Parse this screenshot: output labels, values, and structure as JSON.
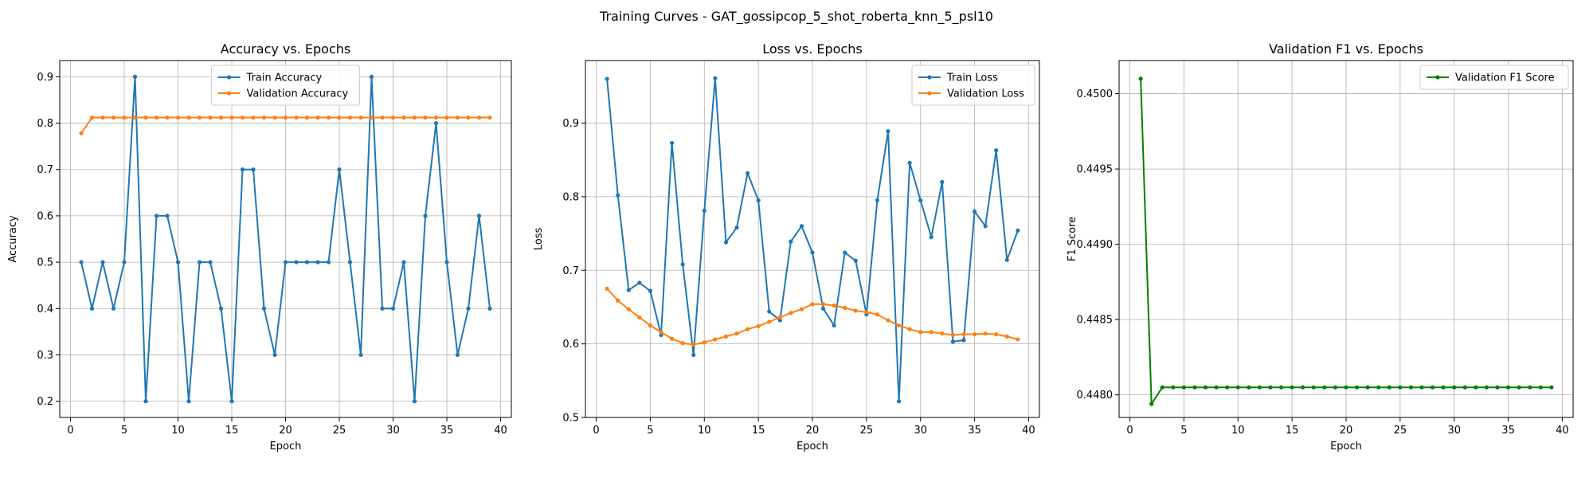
{
  "figure": {
    "suptitle": "Training Curves - GAT_gossipcop_5_shot_roberta_knn_5_psl10"
  },
  "chart_data": [
    {
      "type": "line",
      "title": "Accuracy vs. Epochs",
      "xlabel": "Epoch",
      "ylabel": "Accuracy",
      "xlim": [
        -1,
        41
      ],
      "ylim": [
        0.165,
        0.935
      ],
      "xticks": [
        0,
        5,
        10,
        15,
        20,
        25,
        30,
        35,
        40
      ],
      "yticks": [
        0.2,
        0.3,
        0.4,
        0.5,
        0.6,
        0.7,
        0.8,
        0.9
      ],
      "ytick_decimals": 1,
      "grid": true,
      "legend": "top-center",
      "x": [
        1,
        2,
        3,
        4,
        5,
        6,
        7,
        8,
        9,
        10,
        11,
        12,
        13,
        14,
        15,
        16,
        17,
        18,
        19,
        20,
        21,
        22,
        23,
        24,
        25,
        26,
        27,
        28,
        29,
        30,
        31,
        32,
        33,
        34,
        35,
        36,
        37,
        38,
        39
      ],
      "series": [
        {
          "name": "Train Accuracy",
          "color": "#1f77b4",
          "values": [
            0.5,
            0.4,
            0.5,
            0.4,
            0.5,
            0.9,
            0.2,
            0.6,
            0.6,
            0.5,
            0.2,
            0.5,
            0.5,
            0.4,
            0.2,
            0.7,
            0.7,
            0.4,
            0.3,
            0.5,
            0.5,
            0.5,
            0.5,
            0.5,
            0.7,
            0.5,
            0.3,
            0.9,
            0.4,
            0.4,
            0.5,
            0.2,
            0.6,
            0.8,
            0.5,
            0.3,
            0.4,
            0.6,
            0.4
          ]
        },
        {
          "name": "Validation Accuracy",
          "color": "#ff7f0e",
          "values": [
            0.778,
            0.812,
            0.812,
            0.812,
            0.812,
            0.812,
            0.812,
            0.812,
            0.812,
            0.812,
            0.812,
            0.812,
            0.812,
            0.812,
            0.812,
            0.812,
            0.812,
            0.812,
            0.812,
            0.812,
            0.812,
            0.812,
            0.812,
            0.812,
            0.812,
            0.812,
            0.812,
            0.812,
            0.812,
            0.812,
            0.812,
            0.812,
            0.812,
            0.812,
            0.812,
            0.812,
            0.812,
            0.812,
            0.812
          ]
        }
      ]
    },
    {
      "type": "line",
      "title": "Loss vs. Epochs",
      "xlabel": "Epoch",
      "ylabel": "Loss",
      "xlim": [
        -1,
        41
      ],
      "ylim": [
        0.5,
        0.985
      ],
      "xticks": [
        0,
        5,
        10,
        15,
        20,
        25,
        30,
        35,
        40
      ],
      "yticks": [
        0.5,
        0.6,
        0.7,
        0.8,
        0.9
      ],
      "ytick_decimals": 1,
      "grid": true,
      "legend": "top-right",
      "x": [
        1,
        2,
        3,
        4,
        5,
        6,
        7,
        8,
        9,
        10,
        11,
        12,
        13,
        14,
        15,
        16,
        17,
        18,
        19,
        20,
        21,
        22,
        23,
        24,
        25,
        26,
        27,
        28,
        29,
        30,
        31,
        32,
        33,
        34,
        35,
        36,
        37,
        38,
        39
      ],
      "series": [
        {
          "name": "Train Loss",
          "color": "#1f77b4",
          "values": [
            0.96,
            0.802,
            0.673,
            0.683,
            0.672,
            0.612,
            0.873,
            0.708,
            0.585,
            0.781,
            0.961,
            0.738,
            0.758,
            0.832,
            0.795,
            0.644,
            0.632,
            0.739,
            0.76,
            0.724,
            0.648,
            0.625,
            0.724,
            0.713,
            0.64,
            0.795,
            0.889,
            0.522,
            0.846,
            0.795,
            0.745,
            0.82,
            0.603,
            0.605,
            0.78,
            0.76,
            0.863,
            0.714,
            0.754
          ]
        },
        {
          "name": "Validation Loss",
          "color": "#ff7f0e",
          "values": [
            0.675,
            0.659,
            0.647,
            0.636,
            0.625,
            0.616,
            0.607,
            0.601,
            0.599,
            0.602,
            0.606,
            0.61,
            0.614,
            0.62,
            0.624,
            0.63,
            0.636,
            0.642,
            0.647,
            0.654,
            0.654,
            0.652,
            0.649,
            0.645,
            0.643,
            0.64,
            0.632,
            0.625,
            0.62,
            0.616,
            0.616,
            0.614,
            0.612,
            0.613,
            0.613,
            0.614,
            0.613,
            0.61,
            0.606
          ]
        }
      ]
    },
    {
      "type": "line",
      "title": "Validation F1 vs. Epochs",
      "xlabel": "Epoch",
      "ylabel": "F1 Score",
      "xlim": [
        -1,
        41
      ],
      "ylim": [
        0.44785,
        0.45022
      ],
      "xticks": [
        0,
        5,
        10,
        15,
        20,
        25,
        30,
        35,
        40
      ],
      "yticks": [
        0.448,
        0.4485,
        0.449,
        0.4495,
        0.45
      ],
      "ytick_decimals": 4,
      "grid": true,
      "legend": "top-right",
      "x": [
        1,
        2,
        3,
        4,
        5,
        6,
        7,
        8,
        9,
        10,
        11,
        12,
        13,
        14,
        15,
        16,
        17,
        18,
        19,
        20,
        21,
        22,
        23,
        24,
        25,
        26,
        27,
        28,
        29,
        30,
        31,
        32,
        33,
        34,
        35,
        36,
        37,
        38,
        39
      ],
      "series": [
        {
          "name": "Validation F1 Score",
          "color": "#008000",
          "values": [
            0.4501,
            0.44794,
            0.44805,
            0.44805,
            0.44805,
            0.44805,
            0.44805,
            0.44805,
            0.44805,
            0.44805,
            0.44805,
            0.44805,
            0.44805,
            0.44805,
            0.44805,
            0.44805,
            0.44805,
            0.44805,
            0.44805,
            0.44805,
            0.44805,
            0.44805,
            0.44805,
            0.44805,
            0.44805,
            0.44805,
            0.44805,
            0.44805,
            0.44805,
            0.44805,
            0.44805,
            0.44805,
            0.44805,
            0.44805,
            0.44805,
            0.44805,
            0.44805,
            0.44805,
            0.44805
          ]
        }
      ]
    }
  ]
}
